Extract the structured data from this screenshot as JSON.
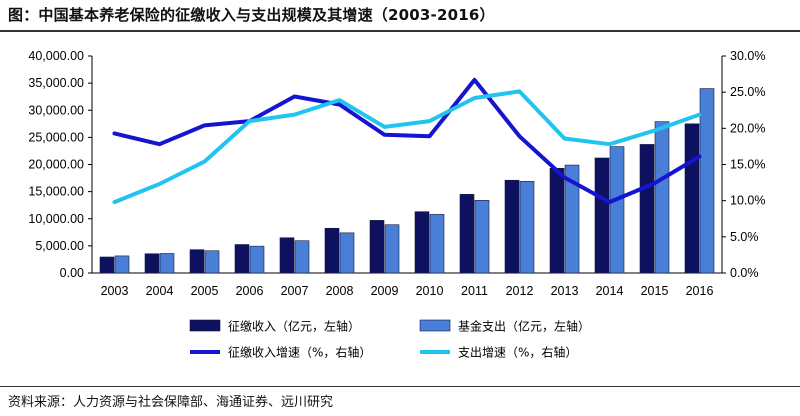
{
  "title": "图：中国基本养老保险的征缴收入与支出规模及其增速（2003-2016）",
  "source": "资料来源：人力资源与社会保障部、海通证券、远川研究",
  "chart_data": {
    "type": "bar",
    "categories": [
      "2003",
      "2004",
      "2005",
      "2006",
      "2007",
      "2008",
      "2009",
      "2010",
      "2011",
      "2012",
      "2013",
      "2014",
      "2015",
      "2016"
    ],
    "y_left": {
      "min": 0,
      "max": 40000,
      "step": 5000,
      "tick_labels": [
        "0.00",
        "5,000.00",
        "10,000.00",
        "15,000.00",
        "20,000.00",
        "25,000.00",
        "30,000.00",
        "35,000.00",
        "40,000.00"
      ]
    },
    "y_right": {
      "min": 0,
      "max": 30,
      "step": 5,
      "tick_labels": [
        "0.0%",
        "5.0%",
        "10.0%",
        "15.0%",
        "20.0%",
        "25.0%",
        "30.0%"
      ]
    },
    "series": [
      {
        "name": "征缴收入（亿元，左轴）",
        "kind": "bar",
        "axis": "left",
        "color": "#0d1160",
        "values": [
          2950,
          3550,
          4300,
          5250,
          6500,
          8250,
          9700,
          11300,
          14500,
          17100,
          19300,
          21200,
          23700,
          27500
        ]
      },
      {
        "name": "基金支出（亿元，左轴）",
        "kind": "bar",
        "axis": "left",
        "color": "#4a7fd8",
        "values": [
          3150,
          3600,
          4100,
          4950,
          5950,
          7400,
          8900,
          10800,
          13400,
          16900,
          19900,
          23300,
          27900,
          34000
        ]
      },
      {
        "name": "征缴收入增速（%，右轴）",
        "kind": "line",
        "axis": "right",
        "color": "#1515d0",
        "values": [
          19.3,
          17.8,
          20.4,
          21.0,
          24.4,
          23.3,
          19.1,
          18.9,
          26.7,
          18.9,
          13.2,
          9.8,
          12.4,
          16.1
        ]
      },
      {
        "name": "支出增速（%，右轴）",
        "kind": "line",
        "axis": "right",
        "color": "#22c3ee",
        "values": [
          9.8,
          12.3,
          15.4,
          21.0,
          21.9,
          23.9,
          20.2,
          21.0,
          24.2,
          25.1,
          18.6,
          17.8,
          19.7,
          21.9
        ]
      }
    ],
    "legend_position": "bottom",
    "grid": false
  }
}
